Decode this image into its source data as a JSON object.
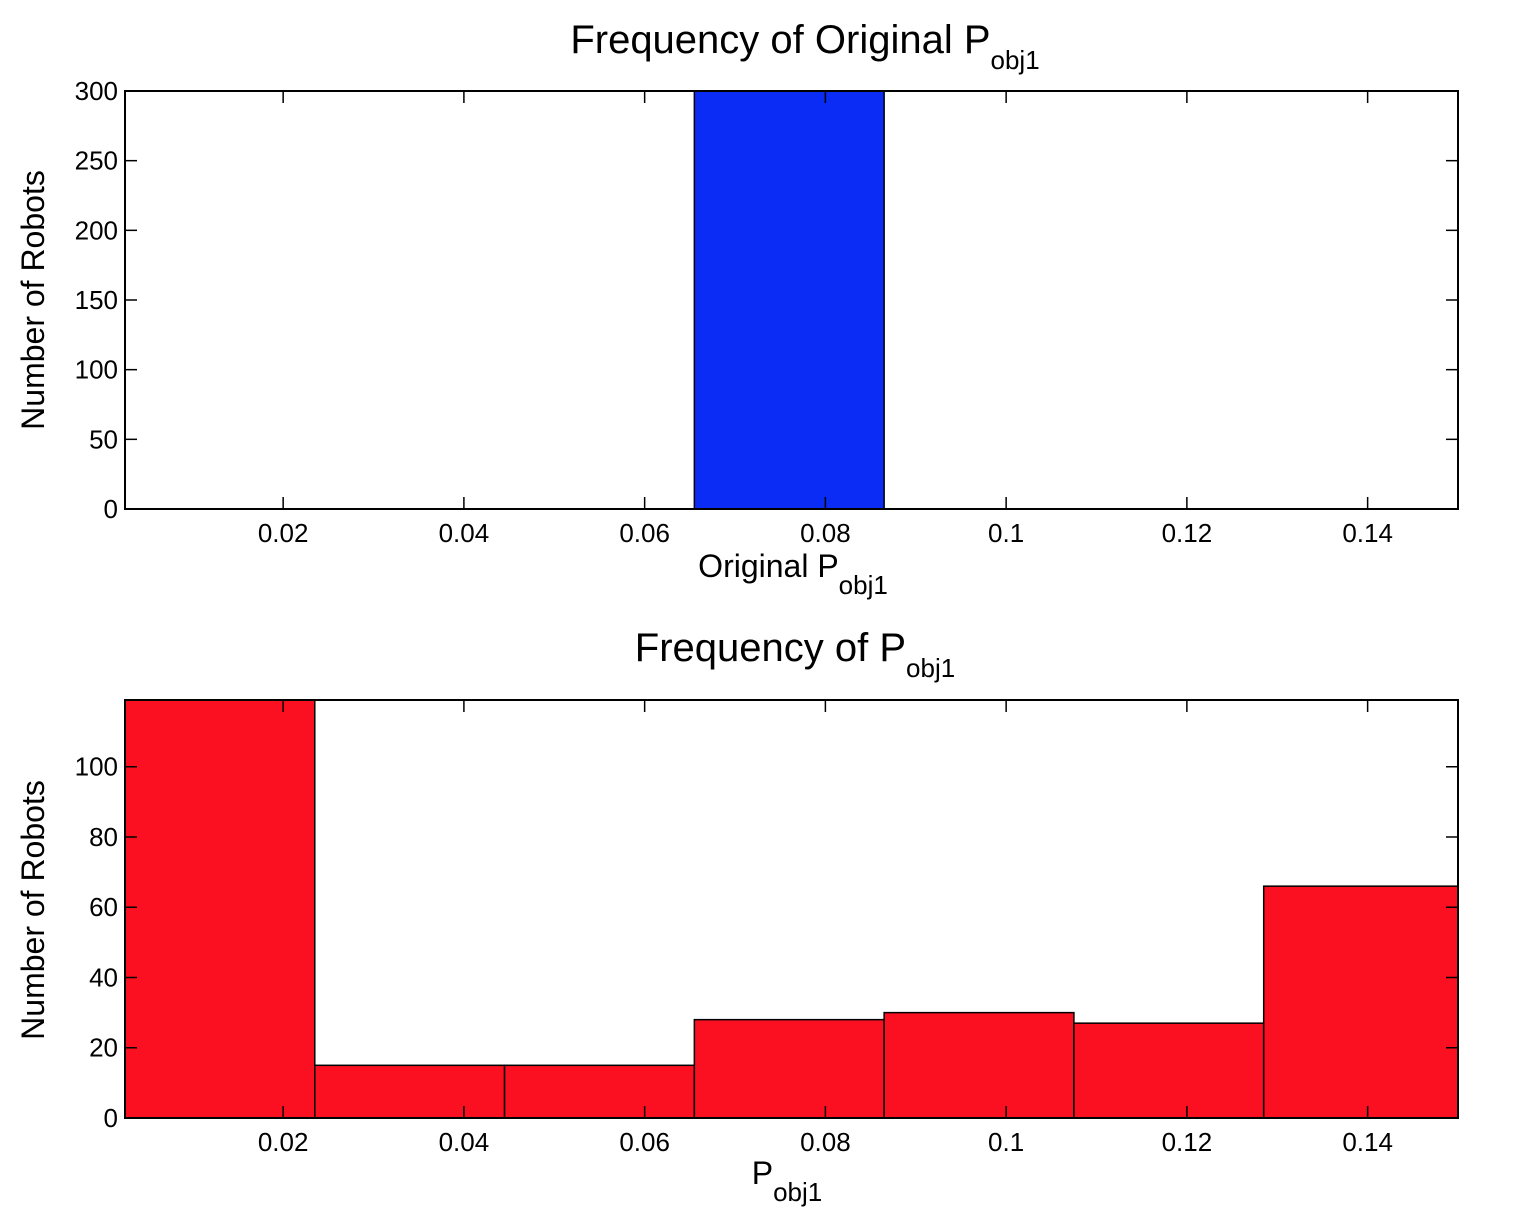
{
  "chart_data": [
    {
      "type": "bar",
      "title": {
        "main": "Frequency of Original P",
        "subscript": "obj1"
      },
      "xlabel": {
        "main": "Original P",
        "subscript": "obj1"
      },
      "ylabel": "Number of Robots",
      "xlim": [
        0.0025,
        0.15
      ],
      "ylim": [
        0,
        300
      ],
      "xticks": [
        0.02,
        0.04,
        0.06,
        0.08,
        0.1,
        0.12,
        0.14
      ],
      "xtick_labels": [
        "0.02",
        "0.04",
        "0.06",
        "0.08",
        "0.1",
        "0.12",
        "0.14"
      ],
      "yticks": [
        0,
        50,
        100,
        150,
        200,
        250,
        300
      ],
      "ytick_labels": [
        "0",
        "50",
        "100",
        "150",
        "200",
        "250",
        "300"
      ],
      "bins": [
        {
          "x0": 0.0655,
          "x1": 0.0865,
          "value": 300
        }
      ],
      "color": "#0a2cf5",
      "grid": false
    },
    {
      "type": "bar",
      "title": {
        "main": "Frequency of P",
        "subscript": "obj1"
      },
      "xlabel": {
        "main": "P",
        "subscript": "obj1"
      },
      "ylabel": "Number of Robots",
      "xlim": [
        0.0025,
        0.15
      ],
      "ylim": [
        0,
        119
      ],
      "xticks": [
        0.02,
        0.04,
        0.06,
        0.08,
        0.1,
        0.12,
        0.14
      ],
      "xtick_labels": [
        "0.02",
        "0.04",
        "0.06",
        "0.08",
        "0.1",
        "0.12",
        "0.14"
      ],
      "yticks": [
        0,
        20,
        40,
        60,
        80,
        100
      ],
      "ytick_labels": [
        "0",
        "20",
        "40",
        "60",
        "80",
        "100"
      ],
      "bins": [
        {
          "x0": 0.0025,
          "x1": 0.0235,
          "value": 119
        },
        {
          "x0": 0.0235,
          "x1": 0.0445,
          "value": 15
        },
        {
          "x0": 0.0445,
          "x1": 0.0655,
          "value": 15
        },
        {
          "x0": 0.0655,
          "x1": 0.0865,
          "value": 28
        },
        {
          "x0": 0.0865,
          "x1": 0.1075,
          "value": 30
        },
        {
          "x0": 0.1075,
          "x1": 0.1285,
          "value": 27
        },
        {
          "x0": 0.1285,
          "x1": 0.15,
          "value": 66
        }
      ],
      "color": "#fa1020",
      "grid": false
    }
  ]
}
